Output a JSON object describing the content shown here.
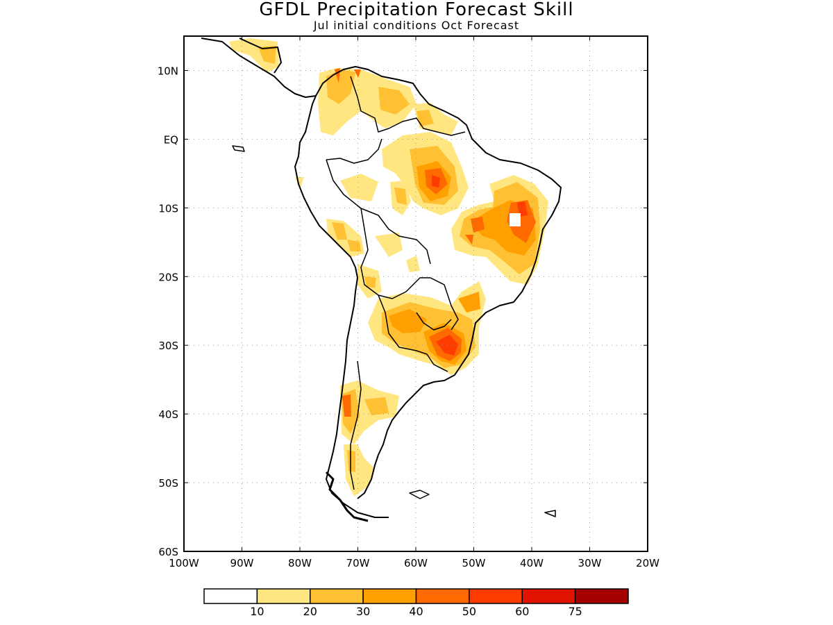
{
  "title": "GFDL Precipitation Forecast Skill",
  "subtitle": "Jul initial conditions  Oct Forecast",
  "map": {
    "region": "South America",
    "lon_range": [
      -100,
      -20
    ],
    "lat_range": [
      -60,
      15
    ],
    "x_ticks": [
      "100W",
      "90W",
      "80W",
      "70W",
      "60W",
      "50W",
      "40W",
      "30W",
      "20W"
    ],
    "y_ticks": [
      "10N",
      "EQ",
      "10S",
      "20S",
      "30S",
      "40S",
      "50S",
      "60S"
    ],
    "gridlines": "dotted"
  },
  "colorbar": {
    "colors": [
      "#ffffff",
      "#ffe680",
      "#ffc033",
      "#ffa000",
      "#ff6a00",
      "#ff3c00",
      "#e01400",
      "#a50000"
    ],
    "labels": [
      "10",
      "20",
      "30",
      "40",
      "50",
      "60",
      "75"
    ]
  },
  "features": {
    "coastline": "black",
    "missing_data_color": "#ffffff"
  }
}
